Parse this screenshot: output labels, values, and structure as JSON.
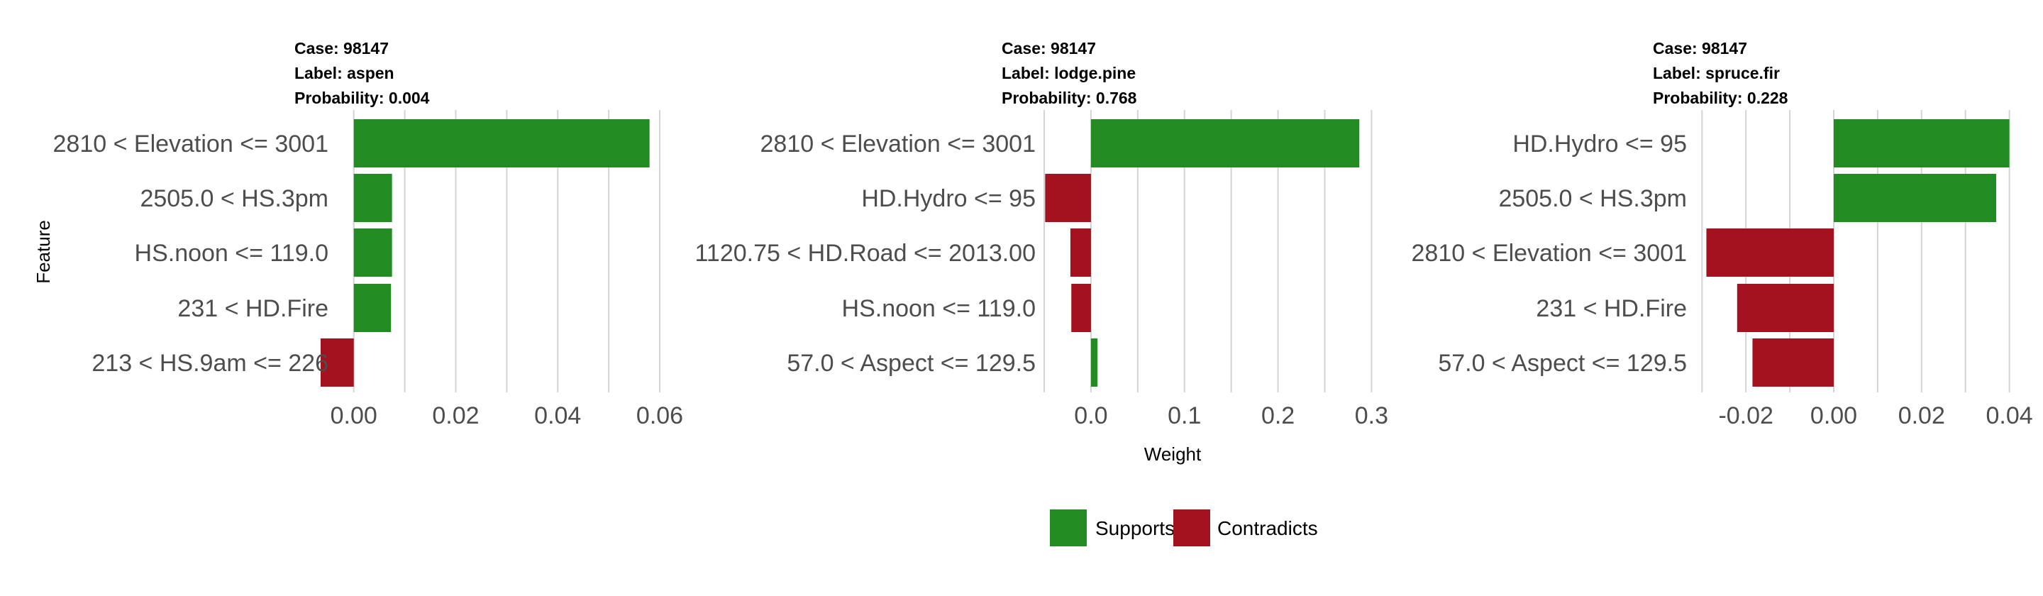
{
  "chart_data": {
    "type": "bar",
    "orientation": "horizontal",
    "xlabel": "Weight",
    "ylabel": "Feature",
    "legend": {
      "position": "bottom",
      "entries": [
        {
          "label": "Supports",
          "color": "#228B22"
        },
        {
          "label": "Contradicts",
          "color": "#A3121E"
        }
      ]
    },
    "panels": [
      {
        "title_lines": [
          "Case: 98147",
          "Label: aspen",
          "Probability: 0.004"
        ],
        "xlim": [
          -0.0033,
          0.0625
        ],
        "ticks": [
          0.0,
          0.02,
          0.04,
          0.06
        ],
        "tick_labels": [
          "0.00",
          "0.02",
          "0.04",
          "0.06"
        ],
        "minor_grid": [
          0.01,
          0.03,
          0.05
        ],
        "bars": [
          {
            "feature": "2810 < Elevation <= 3001",
            "value": 0.058
          },
          {
            "feature": "2505.0 < HS.3pm",
            "value": 0.0075
          },
          {
            "feature": "HS.noon <= 119.0",
            "value": 0.0075
          },
          {
            "feature": "231 < HD.Fire",
            "value": 0.0073
          },
          {
            "feature": "213 < HS.9am <= 226",
            "value": -0.0065
          }
        ]
      },
      {
        "title_lines": [
          "Case: 98147",
          "Label: lodge.pine",
          "Probability: 0.768"
        ],
        "xlim": [
          -0.05,
          0.305
        ],
        "ticks": [
          0.0,
          0.1,
          0.2,
          0.3
        ],
        "tick_labels": [
          "0.0",
          "0.1",
          "0.2",
          "0.3"
        ],
        "minor_grid": [
          -0.05,
          0.05,
          0.15,
          0.25
        ],
        "bars": [
          {
            "feature": "2810 < Elevation <= 3001",
            "value": 0.287
          },
          {
            "feature": "HD.Hydro <= 95",
            "value": -0.049
          },
          {
            "feature": "1120.75 < HD.Road <= 2013.00",
            "value": -0.022
          },
          {
            "feature": "HS.noon <= 119.0",
            "value": -0.021
          },
          {
            "feature": "57.0 < Aspect <= 129.5",
            "value": 0.007
          }
        ]
      },
      {
        "title_lines": [
          "Case: 98147",
          "Label: spruce.fir",
          "Probability: 0.228"
        ],
        "xlim": [
          -0.0315,
          0.042
        ],
        "ticks": [
          -0.02,
          0.0,
          0.02,
          0.04
        ],
        "tick_labels": [
          "-0.02",
          "0.00",
          "0.02",
          "0.04"
        ],
        "minor_grid": [
          -0.03,
          -0.01,
          0.01,
          0.03
        ],
        "bars": [
          {
            "feature": "HD.Hydro <= 95",
            "value": 0.04
          },
          {
            "feature": "2505.0 < HS.3pm",
            "value": 0.037
          },
          {
            "feature": "2810 < Elevation <= 3001",
            "value": -0.029
          },
          {
            "feature": "231 < HD.Fire",
            "value": -0.022
          },
          {
            "feature": "57.0 < Aspect <= 129.5",
            "value": -0.0185
          }
        ]
      }
    ]
  }
}
